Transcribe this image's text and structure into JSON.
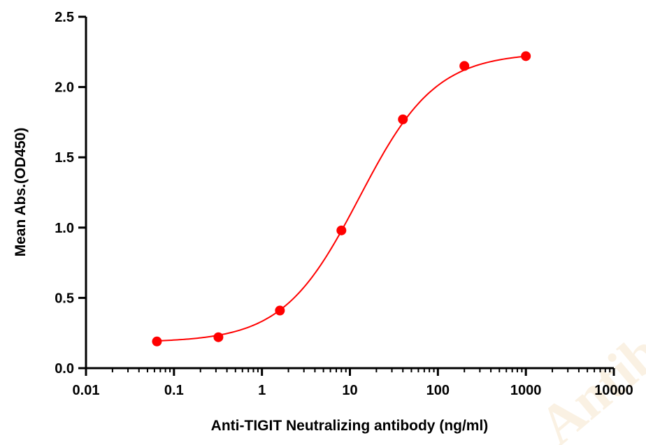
{
  "chart_data": {
    "type": "scatter",
    "xlabel": "Anti-TIGIT Neutralizing antibody (ng/ml)",
    "ylabel": "Mean Abs.(OD450)",
    "x_scale": "log",
    "xlim": [
      0.01,
      10000
    ],
    "ylim": [
      0,
      2.5
    ],
    "x_ticks": [
      0.01,
      0.1,
      1,
      10,
      100,
      1000,
      10000
    ],
    "x_tick_labels": [
      "0.01",
      "0.1",
      "1",
      "10",
      "100",
      "1000",
      "10000"
    ],
    "y_ticks": [
      0,
      0.5,
      1.0,
      1.5,
      2.0,
      2.5
    ],
    "y_tick_labels": [
      "0.0",
      "0.5",
      "1.0",
      "1.5",
      "2.0",
      "2.5"
    ],
    "series": [
      {
        "x": [
          0.064,
          0.32,
          1.6,
          8,
          40,
          200,
          1000
        ],
        "y": [
          0.19,
          0.22,
          0.41,
          0.98,
          1.77,
          2.15,
          2.22
        ],
        "marker": "circle",
        "fit": "4PL sigmoid",
        "fit_params": {
          "bottom": 0.184,
          "top": 2.245,
          "ec50": 12.8,
          "hill": 1.0
        }
      }
    ],
    "colors": {
      "series": "#ff0000",
      "axis": "#000000"
    },
    "grid": false,
    "legend": "none"
  },
  "watermark": {
    "text": "AntibodySystem"
  }
}
